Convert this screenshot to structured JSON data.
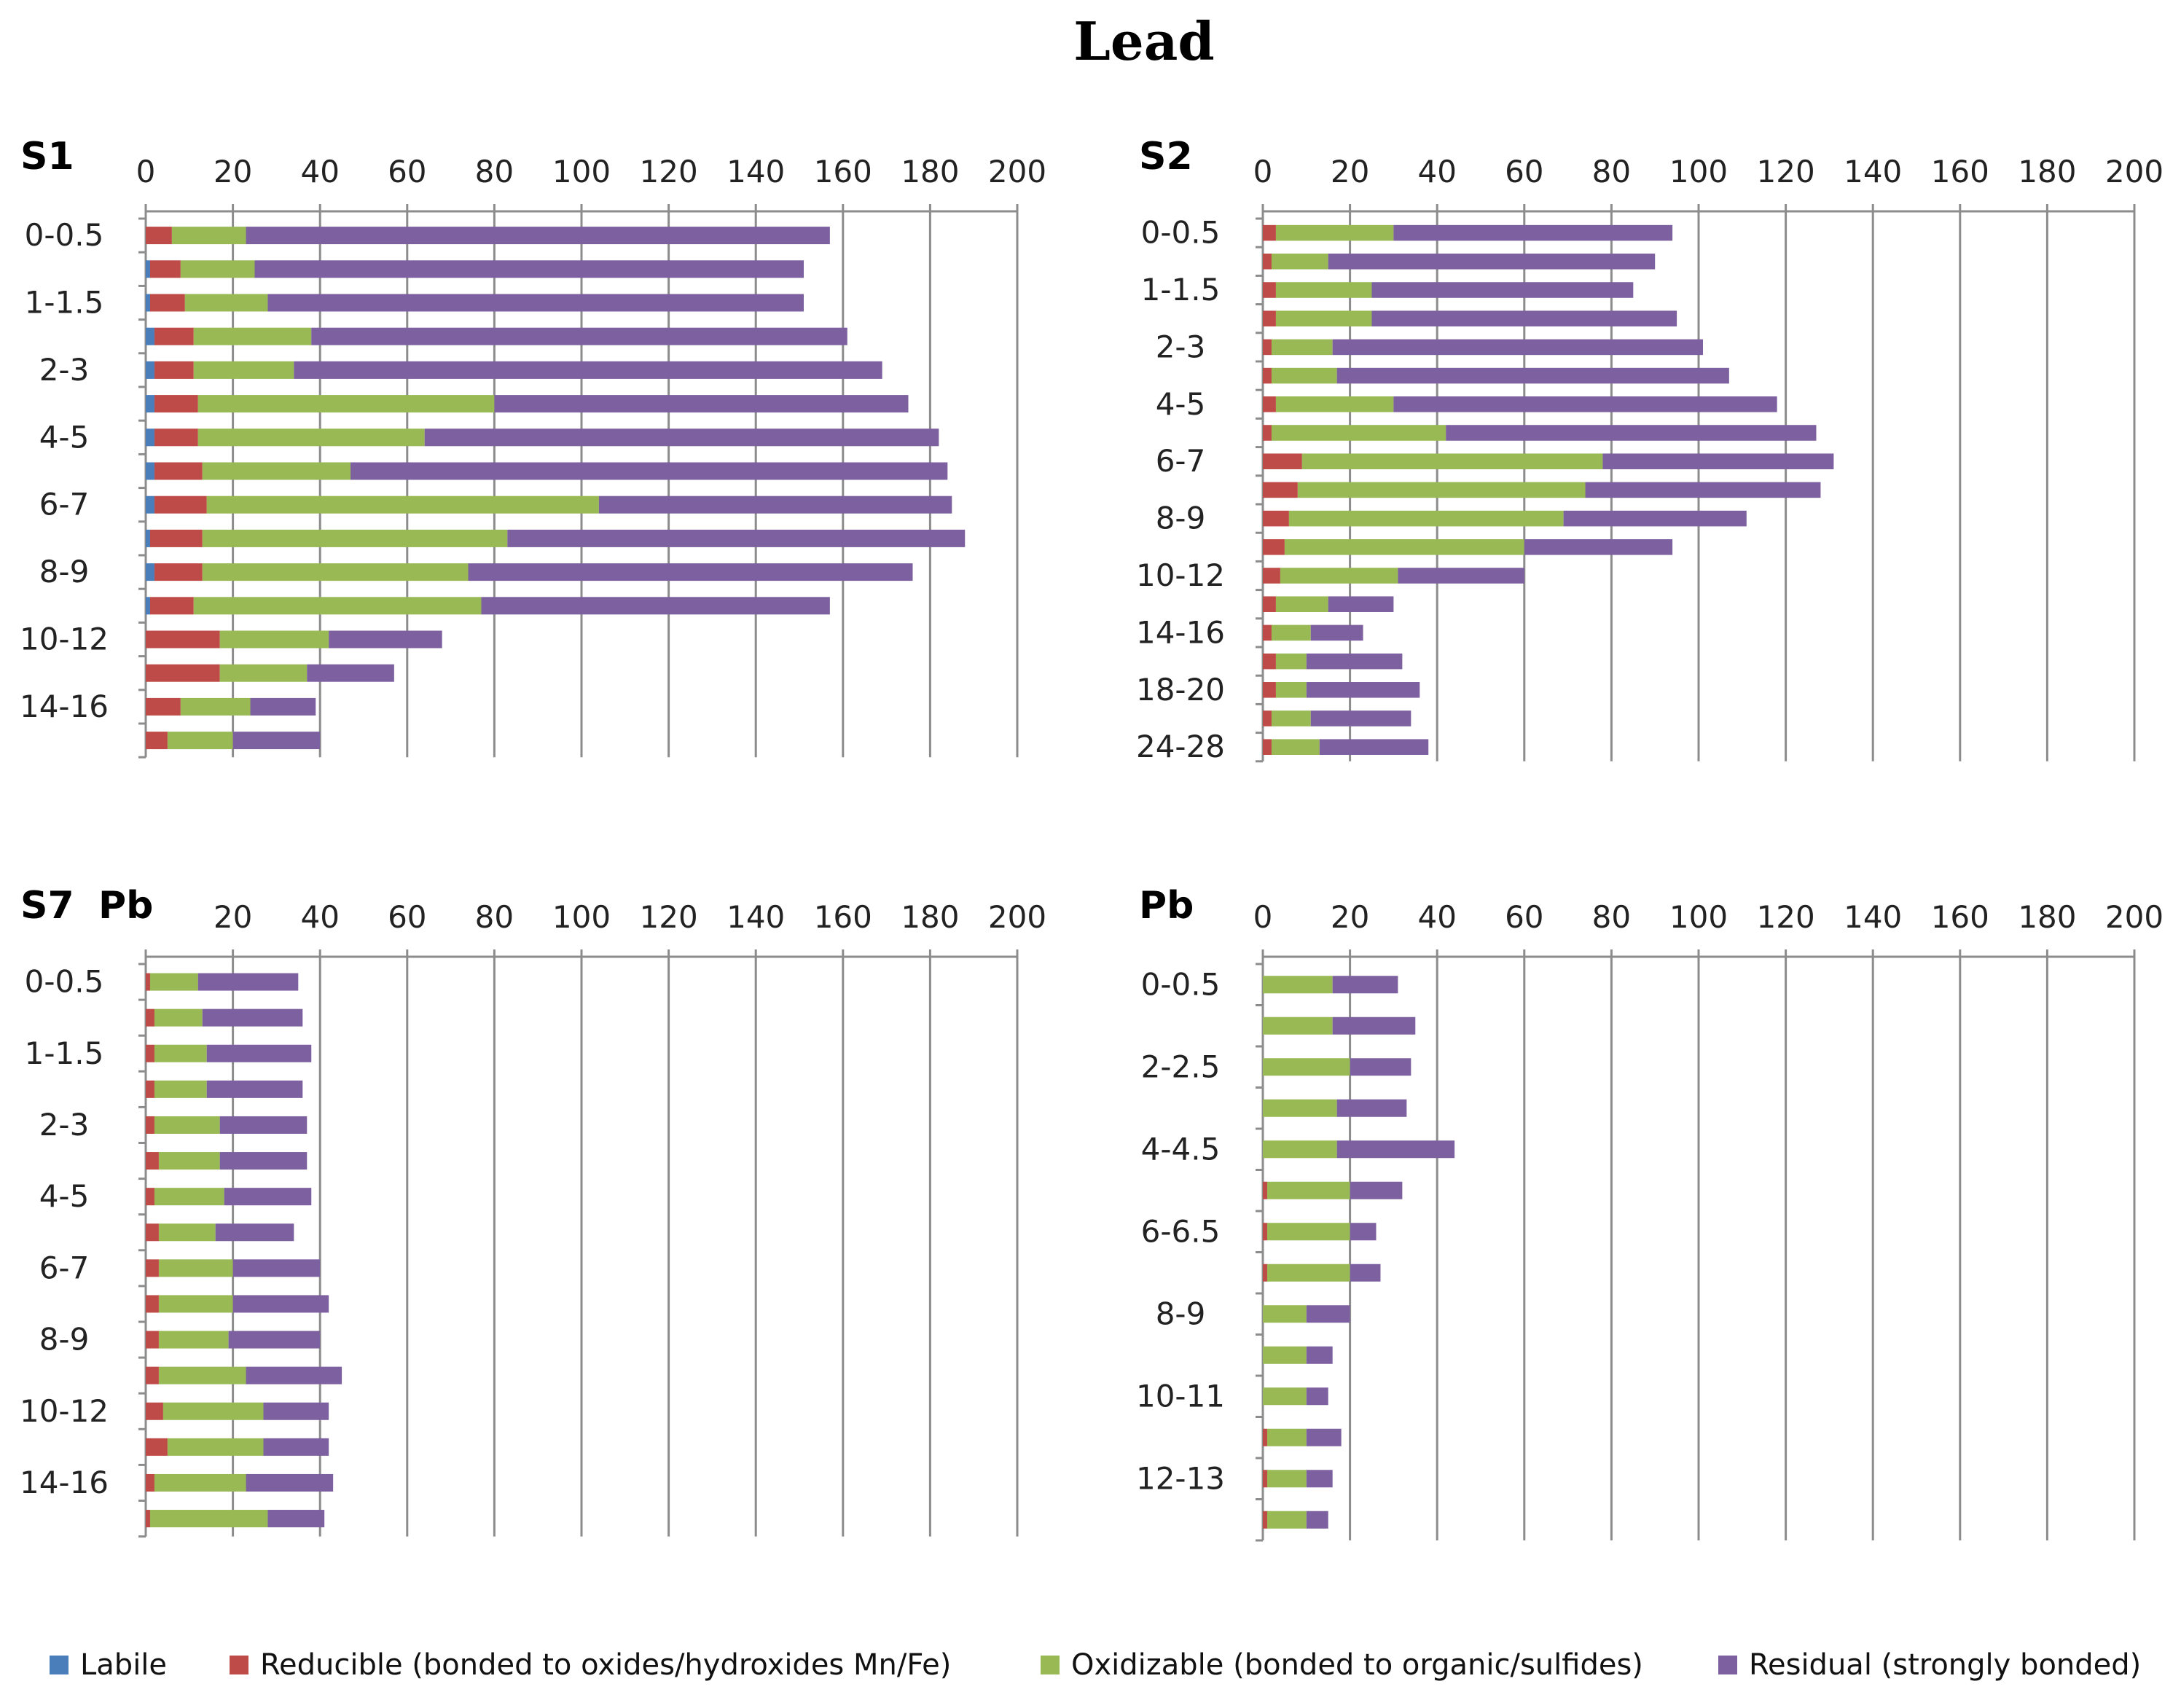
{
  "title": "Lead",
  "series_colors": {
    "Labile": "#4a7ebb",
    "Reducible (bonded to oxides/hydroxides Mn/Fe)": "#be4b48",
    "Oxidizable (bonded to organic/sulfides)": "#98b954",
    "Residual (strongly bonded)": "#7d60a0"
  },
  "legend": [
    {
      "label": "Labile",
      "color": "#4a7ebb"
    },
    {
      "label": "Reducible (bonded to oxides/hydroxides Mn/Fe)",
      "color": "#be4b48"
    },
    {
      "label": "Oxidizable (bonded to organic/sulfides)",
      "color": "#98b954"
    },
    {
      "label": "Residual (strongly bonded)",
      "color": "#7d60a0"
    }
  ],
  "chart_data": [
    {
      "type": "bar",
      "orientation": "horizontal-stacked",
      "panel_label": "S1",
      "xlim": [
        0,
        200
      ],
      "xticks": [
        "0",
        "20",
        "40",
        "60",
        "80",
        "100",
        "120",
        "140",
        "160",
        "180",
        "200"
      ],
      "category_labels": [
        "0-0.5",
        "1-1.5",
        "2-3",
        "4-5",
        "6-7",
        "8-9",
        "10-12",
        "14-16"
      ],
      "bars": [
        [
          0,
          6,
          17,
          134
        ],
        [
          1,
          7,
          17,
          126
        ],
        [
          1,
          8,
          19,
          123
        ],
        [
          2,
          9,
          27,
          123
        ],
        [
          2,
          9,
          23,
          135
        ],
        [
          2,
          10,
          68,
          95
        ],
        [
          2,
          10,
          52,
          118
        ],
        [
          2,
          11,
          34,
          137
        ],
        [
          2,
          12,
          90,
          81
        ],
        [
          1,
          12,
          70,
          105
        ],
        [
          2,
          11,
          61,
          102
        ],
        [
          1,
          10,
          66,
          80
        ],
        [
          0,
          17,
          25,
          26
        ],
        [
          0,
          17,
          20,
          20
        ],
        [
          0,
          8,
          16,
          15
        ],
        [
          0,
          5,
          15,
          20
        ]
      ]
    },
    {
      "type": "bar",
      "orientation": "horizontal-stacked",
      "panel_label": "S2",
      "xlim": [
        0,
        200
      ],
      "xticks": [
        "0",
        "20",
        "40",
        "60",
        "80",
        "100",
        "120",
        "140",
        "160",
        "180",
        "200"
      ],
      "category_labels": [
        "0-0.5",
        "1-1.5",
        "2-3",
        "4-5",
        "6-7",
        "8-9",
        "10-12",
        "14-16",
        "18-20",
        "24-28"
      ],
      "bars": [
        [
          0,
          3,
          27,
          64
        ],
        [
          0,
          2,
          13,
          75
        ],
        [
          0,
          3,
          22,
          60
        ],
        [
          0,
          3,
          22,
          70
        ],
        [
          0,
          2,
          14,
          85
        ],
        [
          0,
          2,
          15,
          90
        ],
        [
          0,
          3,
          27,
          88
        ],
        [
          0,
          2,
          40,
          85
        ],
        [
          0,
          9,
          69,
          53
        ],
        [
          0,
          8,
          66,
          54
        ],
        [
          0,
          6,
          63,
          42
        ],
        [
          0,
          5,
          55,
          34
        ],
        [
          0,
          4,
          27,
          29
        ],
        [
          0,
          3,
          12,
          15
        ],
        [
          0,
          2,
          9,
          12
        ],
        [
          0,
          3,
          7,
          22
        ],
        [
          0,
          3,
          7,
          26
        ],
        [
          0,
          2,
          9,
          23
        ],
        [
          0,
          2,
          11,
          25
        ]
      ]
    },
    {
      "type": "bar",
      "orientation": "horizontal-stacked",
      "panel_label": "S7",
      "panel_label_extra": "Pb",
      "xlim": [
        0,
        200
      ],
      "xticks": [
        "",
        "20",
        "40",
        "60",
        "80",
        "100",
        "120",
        "140",
        "160",
        "180",
        "200"
      ],
      "category_labels": [
        "0-0.5",
        "1-1.5",
        "2-3",
        "4-5",
        "6-7",
        "8-9",
        "10-12",
        "14-16"
      ],
      "bars": [
        [
          0,
          1,
          11,
          23
        ],
        [
          0,
          2,
          11,
          23
        ],
        [
          0,
          2,
          12,
          24
        ],
        [
          0,
          2,
          12,
          22
        ],
        [
          0,
          2,
          15,
          20
        ],
        [
          0,
          3,
          14,
          20
        ],
        [
          0,
          2,
          16,
          20
        ],
        [
          0,
          3,
          13,
          18
        ],
        [
          0,
          3,
          17,
          20
        ],
        [
          0,
          3,
          17,
          22
        ],
        [
          0,
          3,
          16,
          21
        ],
        [
          0,
          3,
          20,
          22
        ],
        [
          0,
          4,
          23,
          15
        ],
        [
          0,
          5,
          22,
          15
        ],
        [
          0,
          2,
          21,
          20
        ],
        [
          0,
          1,
          27,
          13
        ]
      ]
    },
    {
      "type": "bar",
      "orientation": "horizontal-stacked",
      "panel_label": "Pb",
      "xlim": [
        0,
        200
      ],
      "xticks": [
        "0",
        "20",
        "40",
        "60",
        "80",
        "100",
        "120",
        "140",
        "160",
        "180",
        "200"
      ],
      "category_labels": [
        "0-0.5",
        "2-2.5",
        "4-4.5",
        "6-6.5",
        "8-9",
        "10-11",
        "12-13"
      ],
      "bars": [
        [
          0,
          0,
          16,
          15
        ],
        [
          0,
          0,
          16,
          19
        ],
        [
          0,
          0,
          20,
          14
        ],
        [
          0,
          0,
          17,
          16
        ],
        [
          0,
          0,
          17,
          27
        ],
        [
          0,
          1,
          19,
          12
        ],
        [
          0,
          1,
          19,
          6
        ],
        [
          0,
          1,
          19,
          7
        ],
        [
          0,
          0,
          10,
          10
        ],
        [
          0,
          0,
          10,
          6
        ],
        [
          0,
          0,
          10,
          5
        ],
        [
          0,
          1,
          9,
          8
        ],
        [
          0,
          1,
          9,
          6
        ],
        [
          0,
          1,
          9,
          5
        ]
      ]
    }
  ]
}
